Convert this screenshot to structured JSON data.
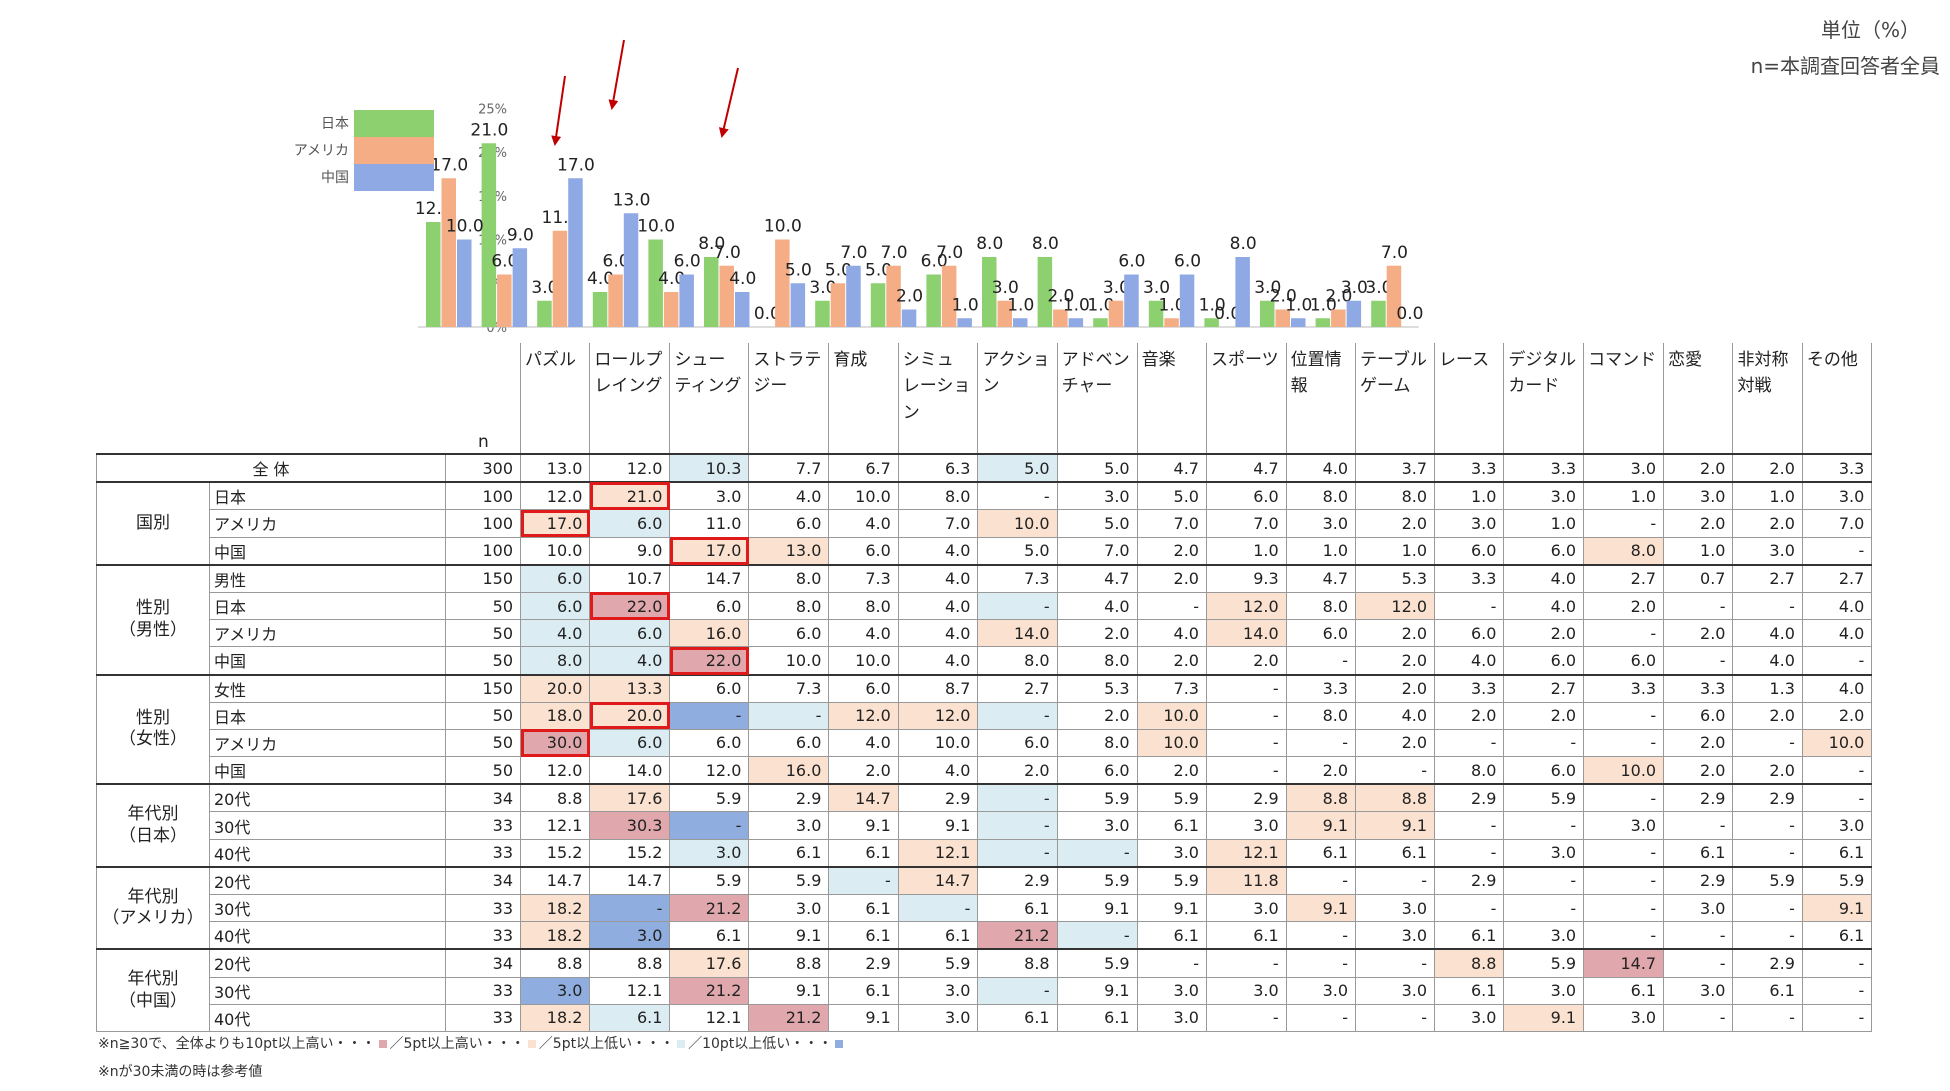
{
  "unit_label": "単位（%）",
  "n_note": "n=本調査回答者全員",
  "n_header": "n",
  "chart_data": {
    "type": "bar",
    "categories": [
      "パズル",
      "ロールプレイング",
      "シューティング",
      "ストラテジー",
      "育成",
      "シミュレーション",
      "アクション",
      "アドベンチャー",
      "音楽",
      "スポーツ",
      "位置情報",
      "テーブルゲーム",
      "レース",
      "デジタルカード",
      "コマンド",
      "恋愛",
      "非対称対戦",
      "その他"
    ],
    "category_lines": [
      [
        "パズル"
      ],
      [
        "ロールプ",
        "レイング"
      ],
      [
        "シュー",
        "ティング"
      ],
      [
        "ストラテ",
        "ジー"
      ],
      [
        "育成"
      ],
      [
        "シミュ",
        "レーショ",
        "ン"
      ],
      [
        "アクショ",
        "ン"
      ],
      [
        "アドベン",
        "チャー"
      ],
      [
        "音楽"
      ],
      [
        "スポーツ"
      ],
      [
        "位置情",
        "報"
      ],
      [
        "テーブル",
        "ゲーム"
      ],
      [
        "レース"
      ],
      [
        "デジタル",
        "カード"
      ],
      [
        "コマンド"
      ],
      [
        "恋愛"
      ],
      [
        "非対称",
        "対戦"
      ],
      [
        "その他"
      ]
    ],
    "series": [
      {
        "name": "日本",
        "color": "#8dd070",
        "values": [
          12.0,
          21.0,
          3.0,
          4.0,
          10.0,
          8.0,
          0.0,
          3.0,
          5.0,
          6.0,
          8.0,
          8.0,
          1.0,
          3.0,
          1.0,
          3.0,
          1.0,
          3.0
        ]
      },
      {
        "name": "アメリカ",
        "color": "#f4ad84",
        "values": [
          17.0,
          6.0,
          11.0,
          6.0,
          4.0,
          7.0,
          10.0,
          5.0,
          7.0,
          7.0,
          3.0,
          2.0,
          3.0,
          1.0,
          0.0,
          2.0,
          2.0,
          7.0
        ]
      },
      {
        "name": "中国",
        "color": "#8fa9e4",
        "values": [
          10.0,
          9.0,
          17.0,
          13.0,
          6.0,
          4.0,
          5.0,
          7.0,
          2.0,
          1.0,
          1.0,
          1.0,
          6.0,
          6.0,
          8.0,
          1.0,
          3.0,
          0.0
        ]
      }
    ],
    "data_labels": [
      [
        "12.0",
        "21.0",
        "3.0",
        "4.0",
        "10.0",
        "8.0",
        "0.0",
        "3.0",
        "5.0",
        "6.0",
        "8.0",
        "8.0",
        "1.0",
        "3.0",
        "1.0",
        "3.0",
        "1.0",
        "3.0"
      ],
      [
        "17.0",
        "6.0",
        "11.0",
        "6.0",
        "4.0",
        "7.0",
        "10.0",
        "5.0",
        "7.0",
        "7.0",
        "3.0",
        "2.0",
        "3.0",
        "1.0",
        "0.0",
        "2.0",
        "2.0",
        "7.0"
      ],
      [
        "10.0",
        "9.0",
        "17.0",
        "13.0",
        "6.0",
        "4.0",
        "5.0",
        "7.0",
        "2.0",
        "1.0",
        "1.0",
        "1.0",
        "6.0",
        "6.0",
        "8.0",
        "1.0",
        "3.0",
        "0.0"
      ]
    ],
    "yticks": [
      "0%",
      "5%",
      "10%",
      "15%",
      "20%",
      "25%"
    ],
    "ylim": [
      0,
      25
    ],
    "legend_position": "top-left",
    "grid": false,
    "arrows_over_categories": [
      0,
      1,
      2
    ],
    "arrow_color": "#c00000"
  },
  "table": {
    "total_label": "全 体",
    "groups": [
      {
        "label": [
          "国別"
        ],
        "rows": [
          {
            "label": "日本",
            "n": "100",
            "values": [
              "12.0",
              "21.0",
              "3.0",
              "4.0",
              "10.0",
              "8.0",
              "-",
              "3.0",
              "5.0",
              "6.0",
              "8.0",
              "8.0",
              "1.0",
              "3.0",
              "1.0",
              "3.0",
              "1.0",
              "3.0"
            ],
            "hl": {
              "1": "h5"
            },
            "box": [
              1
            ]
          },
          {
            "label": "アメリカ",
            "n": "100",
            "values": [
              "17.0",
              "6.0",
              "11.0",
              "6.0",
              "4.0",
              "7.0",
              "10.0",
              "5.0",
              "7.0",
              "7.0",
              "3.0",
              "2.0",
              "3.0",
              "1.0",
              "-",
              "2.0",
              "2.0",
              "7.0"
            ],
            "hl": {
              "0": "h5",
              "1": "l5",
              "6": "h5"
            },
            "box": [
              0
            ]
          },
          {
            "label": "中国",
            "n": "100",
            "values": [
              "10.0",
              "9.0",
              "17.0",
              "13.0",
              "6.0",
              "4.0",
              "5.0",
              "7.0",
              "2.0",
              "1.0",
              "1.0",
              "1.0",
              "6.0",
              "6.0",
              "8.0",
              "1.0",
              "3.0",
              "-"
            ],
            "hl": {
              "2": "h5",
              "3": "h5",
              "14": "h5"
            },
            "box": [
              2
            ]
          }
        ]
      },
      {
        "label": [
          "性別",
          "（男性）"
        ],
        "rows": [
          {
            "label": "男性",
            "n": "150",
            "values": [
              "6.0",
              "10.7",
              "14.7",
              "8.0",
              "7.3",
              "4.0",
              "7.3",
              "4.7",
              "2.0",
              "9.3",
              "4.7",
              "5.3",
              "3.3",
              "4.0",
              "2.7",
              "0.7",
              "2.7",
              "2.7"
            ],
            "hl": {
              "0": "l5"
            },
            "box": []
          },
          {
            "label": "日本",
            "n": "50",
            "values": [
              "6.0",
              "22.0",
              "6.0",
              "8.0",
              "8.0",
              "4.0",
              "-",
              "4.0",
              "-",
              "12.0",
              "8.0",
              "12.0",
              "-",
              "4.0",
              "2.0",
              "-",
              "-",
              "4.0"
            ],
            "hl": {
              "0": "l5",
              "1": "h10",
              "6": "l5",
              "9": "h5",
              "11": "h5"
            },
            "box": [
              1
            ]
          },
          {
            "label": "アメリカ",
            "n": "50",
            "values": [
              "4.0",
              "6.0",
              "16.0",
              "6.0",
              "4.0",
              "4.0",
              "14.0",
              "2.0",
              "4.0",
              "14.0",
              "6.0",
              "2.0",
              "6.0",
              "2.0",
              "-",
              "2.0",
              "4.0",
              "4.0"
            ],
            "hl": {
              "0": "l5",
              "1": "l5",
              "2": "h5",
              "6": "h5",
              "9": "h5"
            },
            "box": []
          },
          {
            "label": "中国",
            "n": "50",
            "values": [
              "8.0",
              "4.0",
              "22.0",
              "10.0",
              "10.0",
              "4.0",
              "8.0",
              "8.0",
              "2.0",
              "2.0",
              "-",
              "2.0",
              "4.0",
              "6.0",
              "6.0",
              "-",
              "4.0",
              "-"
            ],
            "hl": {
              "0": "l5",
              "1": "l5",
              "2": "h10"
            },
            "box": [
              2
            ]
          }
        ]
      },
      {
        "label": [
          "性別",
          "（女性）"
        ],
        "rows": [
          {
            "label": "女性",
            "n": "150",
            "values": [
              "20.0",
              "13.3",
              "6.0",
              "7.3",
              "6.0",
              "8.7",
              "2.7",
              "5.3",
              "7.3",
              "-",
              "3.3",
              "2.0",
              "3.3",
              "2.7",
              "3.3",
              "3.3",
              "1.3",
              "4.0"
            ],
            "hl": {
              "0": "h5",
              "1": "h5"
            },
            "box": []
          },
          {
            "label": "日本",
            "n": "50",
            "values": [
              "18.0",
              "20.0",
              "-",
              "-",
              "12.0",
              "12.0",
              "-",
              "2.0",
              "10.0",
              "-",
              "8.0",
              "4.0",
              "2.0",
              "2.0",
              "-",
              "6.0",
              "2.0",
              "2.0"
            ],
            "hl": {
              "0": "h5",
              "1": "h5",
              "2": "l10",
              "3": "l5",
              "4": "h5",
              "5": "h5",
              "6": "l5",
              "8": "h5"
            },
            "box": [
              1
            ]
          },
          {
            "label": "アメリカ",
            "n": "50",
            "values": [
              "30.0",
              "6.0",
              "6.0",
              "6.0",
              "4.0",
              "10.0",
              "6.0",
              "8.0",
              "10.0",
              "-",
              "-",
              "2.0",
              "-",
              "-",
              "-",
              "2.0",
              "-",
              "10.0"
            ],
            "hl": {
              "0": "h10",
              "1": "l5",
              "8": "h5",
              "17": "h5"
            },
            "box": [
              0
            ]
          },
          {
            "label": "中国",
            "n": "50",
            "values": [
              "12.0",
              "14.0",
              "12.0",
              "16.0",
              "2.0",
              "4.0",
              "2.0",
              "6.0",
              "2.0",
              "-",
              "2.0",
              "-",
              "8.0",
              "6.0",
              "10.0",
              "2.0",
              "2.0",
              "-"
            ],
            "hl": {
              "3": "h5",
              "14": "h5"
            },
            "box": []
          }
        ]
      },
      {
        "label": [
          "年代別",
          "（日本）"
        ],
        "rows": [
          {
            "label": "20代",
            "n": "34",
            "values": [
              "8.8",
              "17.6",
              "5.9",
              "2.9",
              "14.7",
              "2.9",
              "-",
              "5.9",
              "5.9",
              "2.9",
              "8.8",
              "8.8",
              "2.9",
              "5.9",
              "-",
              "2.9",
              "2.9",
              "-"
            ],
            "hl": {
              "1": "h5",
              "4": "h5",
              "6": "l5",
              "10": "h5",
              "11": "h5"
            },
            "box": []
          },
          {
            "label": "30代",
            "n": "33",
            "values": [
              "12.1",
              "30.3",
              "-",
              "3.0",
              "9.1",
              "9.1",
              "-",
              "3.0",
              "6.1",
              "3.0",
              "9.1",
              "9.1",
              "-",
              "-",
              "3.0",
              "-",
              "-",
              "3.0"
            ],
            "hl": {
              "1": "h10",
              "2": "l10",
              "6": "l5",
              "10": "h5",
              "11": "h5"
            },
            "box": []
          },
          {
            "label": "40代",
            "n": "33",
            "values": [
              "15.2",
              "15.2",
              "3.0",
              "6.1",
              "6.1",
              "12.1",
              "-",
              "-",
              "3.0",
              "12.1",
              "6.1",
              "6.1",
              "-",
              "3.0",
              "-",
              "6.1",
              "-",
              "6.1"
            ],
            "hl": {
              "2": "l5",
              "5": "h5",
              "6": "l5",
              "7": "l5",
              "9": "h5"
            },
            "box": []
          }
        ]
      },
      {
        "label": [
          "年代別",
          "（アメリカ）"
        ],
        "rows": [
          {
            "label": "20代",
            "n": "34",
            "values": [
              "14.7",
              "14.7",
              "5.9",
              "5.9",
              "-",
              "14.7",
              "2.9",
              "5.9",
              "5.9",
              "11.8",
              "-",
              "-",
              "2.9",
              "-",
              "-",
              "2.9",
              "5.9",
              "5.9"
            ],
            "hl": {
              "4": "l5",
              "5": "h5",
              "9": "h5"
            },
            "box": []
          },
          {
            "label": "30代",
            "n": "33",
            "values": [
              "18.2",
              "-",
              "21.2",
              "3.0",
              "6.1",
              "-",
              "6.1",
              "9.1",
              "9.1",
              "3.0",
              "9.1",
              "3.0",
              "-",
              "-",
              "-",
              "3.0",
              "-",
              "9.1"
            ],
            "hl": {
              "0": "h5",
              "1": "l10",
              "2": "h10",
              "5": "l5",
              "10": "h5",
              "17": "h5"
            },
            "box": []
          },
          {
            "label": "40代",
            "n": "33",
            "values": [
              "18.2",
              "3.0",
              "6.1",
              "9.1",
              "6.1",
              "6.1",
              "21.2",
              "-",
              "6.1",
              "6.1",
              "-",
              "3.0",
              "6.1",
              "3.0",
              "-",
              "-",
              "-",
              "6.1"
            ],
            "hl": {
              "0": "h5",
              "1": "l10",
              "6": "h10",
              "7": "l5"
            },
            "box": []
          }
        ]
      },
      {
        "label": [
          "年代別",
          "（中国）"
        ],
        "rows": [
          {
            "label": "20代",
            "n": "34",
            "values": [
              "8.8",
              "8.8",
              "17.6",
              "8.8",
              "2.9",
              "5.9",
              "8.8",
              "5.9",
              "-",
              "-",
              "-",
              "-",
              "8.8",
              "5.9",
              "14.7",
              "-",
              "2.9",
              "-"
            ],
            "hl": {
              "2": "h5",
              "12": "h5",
              "14": "h10"
            },
            "box": []
          },
          {
            "label": "30代",
            "n": "33",
            "values": [
              "3.0",
              "12.1",
              "21.2",
              "9.1",
              "6.1",
              "3.0",
              "-",
              "9.1",
              "3.0",
              "3.0",
              "3.0",
              "3.0",
              "6.1",
              "3.0",
              "6.1",
              "3.0",
              "6.1",
              "-"
            ],
            "hl": {
              "0": "l10",
              "2": "h10",
              "6": "l5"
            },
            "box": []
          },
          {
            "label": "40代",
            "n": "33",
            "values": [
              "18.2",
              "6.1",
              "12.1",
              "21.2",
              "9.1",
              "3.0",
              "6.1",
              "6.1",
              "3.0",
              "-",
              "-",
              "-",
              "3.0",
              "9.1",
              "3.0",
              "-",
              "-",
              "-"
            ],
            "hl": {
              "0": "h5",
              "1": "l5",
              "3": "h10",
              "13": "h5"
            },
            "box": []
          }
        ]
      }
    ],
    "total_row": {
      "n": "300",
      "values": [
        "13.0",
        "12.0",
        "10.3",
        "7.7",
        "6.7",
        "6.3",
        "5.0",
        "5.0",
        "4.7",
        "4.7",
        "4.0",
        "3.7",
        "3.3",
        "3.3",
        "3.0",
        "2.0",
        "2.0",
        "3.3"
      ],
      "hl": {
        "2": "l5",
        "6": "l5"
      }
    }
  },
  "legend_note": {
    "prefix": "※n≧30で、全体よりも10pt以上高い・・・",
    "t1": "／5pt以上高い・・・",
    "t2": "／5pt以上低い・・・",
    "t3": "／10pt以上低い・・・"
  },
  "footnote2": "※nが30未満の時は参考値"
}
